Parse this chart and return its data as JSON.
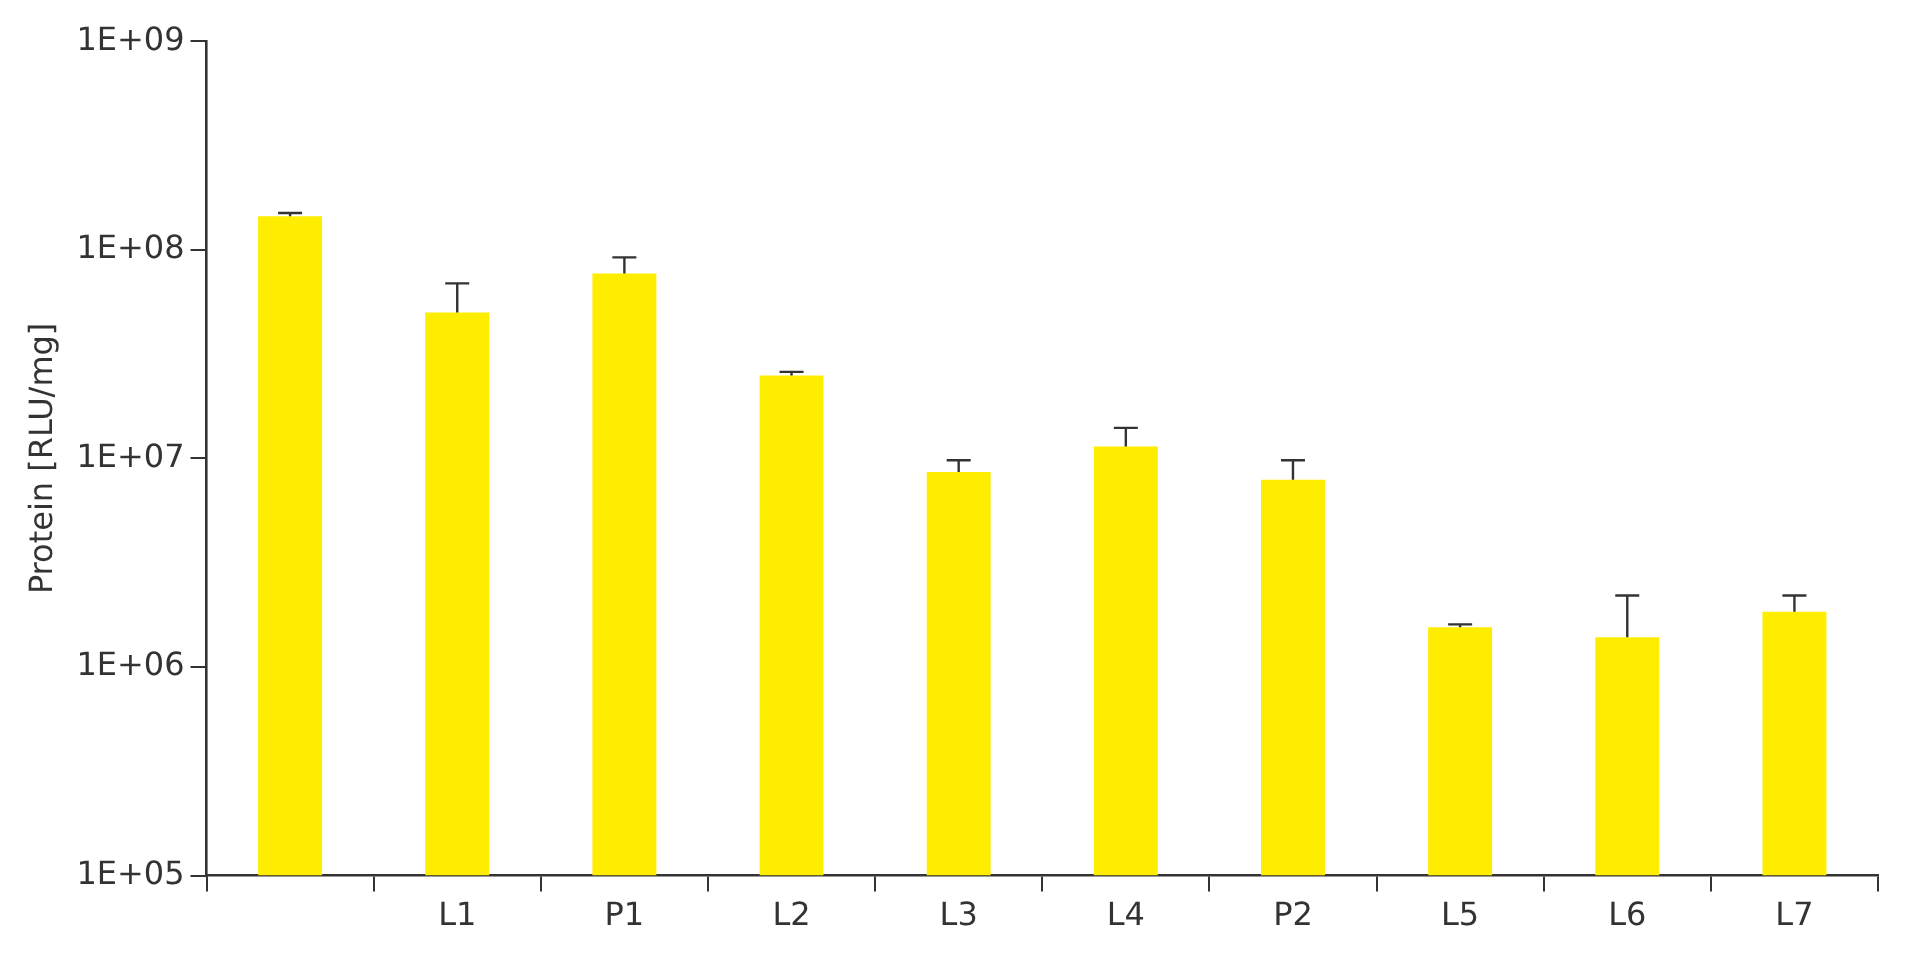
{
  "chart_data": {
    "type": "bar",
    "ylabel": "Protein [RLU/mg]",
    "categories": [
      null,
      "L1",
      "P1",
      "L2",
      "L3",
      "L4",
      "P2",
      "L5",
      "L6",
      "L7"
    ],
    "values": [
      145000000,
      50000000,
      77000000,
      25000000,
      8600000,
      11400000,
      7900000,
      1550000,
      1390000,
      1840000
    ],
    "errors": [
      [
        145000000,
        150000000
      ],
      [
        50000000,
        69000000
      ],
      [
        77000000,
        92000000
      ],
      [
        25000000,
        26000000
      ],
      [
        8600000,
        9800000
      ],
      [
        11400000,
        14000000
      ],
      [
        7900000,
        9800000
      ],
      [
        1550000,
        1600000
      ],
      [
        1390000,
        2200000
      ],
      [
        1840000,
        2200000
      ]
    ],
    "color": "#ffed00",
    "log": "y",
    "ylim": [
      100000,
      1000000000
    ],
    "yticks": [
      {
        "value": 100000,
        "label": "1E+05"
      },
      {
        "value": 1000000,
        "label": "1E+06"
      },
      {
        "value": 10000000,
        "label": "1E+07"
      },
      {
        "value": 100000000,
        "label": "1E+08"
      },
      {
        "value": 1000000000,
        "label": "1E+09"
      }
    ],
    "grid": false
  }
}
